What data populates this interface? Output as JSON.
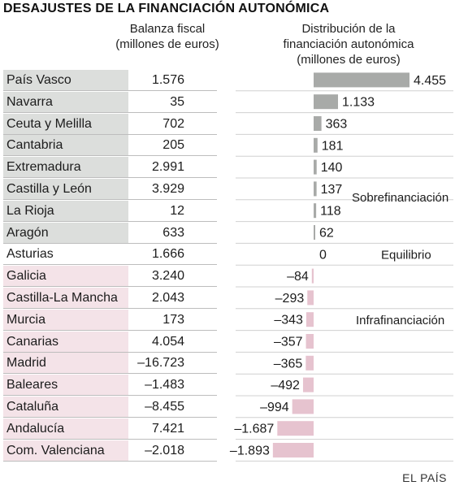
{
  "title": "DESAJUSTES DE LA FINANCIACIÓN AUTONÓMICA",
  "headers": {
    "balanza": [
      "Balanza fiscal",
      "(millones de euros)"
    ],
    "distribucion": [
      "Distribución de la",
      "financiación autonómica",
      "(millones de euros)"
    ]
  },
  "colors": {
    "surplus_bar": "#a8aaa8",
    "deficit_bar": "#e6c3cf",
    "surplus_bg": "#dcdedc",
    "deficit_bg": "#f4e3e8"
  },
  "group_labels": {
    "surplus": "Sobrefinanciación",
    "neutral": "Equilibrio",
    "deficit": "Infrafinanciación"
  },
  "source": "EL PAÍS",
  "rows": [
    {
      "name": "País Vasco",
      "fiscal": "1.576",
      "dist_label": "4.455",
      "group": "sur"
    },
    {
      "name": "Navarra",
      "fiscal": "35",
      "dist_label": "1.133",
      "group": "sur"
    },
    {
      "name": "Ceuta y Melilla",
      "fiscal": "702",
      "dist_label": "363",
      "group": "sur"
    },
    {
      "name": "Cantabria",
      "fiscal": "205",
      "dist_label": "181",
      "group": "sur"
    },
    {
      "name": "Extremadura",
      "fiscal": "2.991",
      "dist_label": "140",
      "group": "sur"
    },
    {
      "name": "Castilla y León",
      "fiscal": "3.929",
      "dist_label": "137",
      "group": "sur"
    },
    {
      "name": "La Rioja",
      "fiscal": "12",
      "dist_label": "118",
      "group": "sur"
    },
    {
      "name": "Aragón",
      "fiscal": "633",
      "dist_label": "62",
      "group": "sur"
    },
    {
      "name": "Asturias",
      "fiscal": "1.666",
      "dist_label": "0",
      "group": "neu"
    },
    {
      "name": "Galicia",
      "fiscal": "3.240",
      "dist_label": "–84",
      "group": "def"
    },
    {
      "name": "Castilla-La Mancha",
      "fiscal": "2.043",
      "dist_label": "–293",
      "group": "def"
    },
    {
      "name": "Murcia",
      "fiscal": "173",
      "dist_label": "–343",
      "group": "def"
    },
    {
      "name": "Canarias",
      "fiscal": "4.054",
      "dist_label": "–357",
      "group": "def"
    },
    {
      "name": "Madrid",
      "fiscal": "–16.723",
      "dist_label": "–365",
      "group": "def"
    },
    {
      "name": "Baleares",
      "fiscal": "–1.483",
      "dist_label": "–492",
      "group": "def"
    },
    {
      "name": "Cataluña",
      "fiscal": "–8.455",
      "dist_label": "–994",
      "group": "def"
    },
    {
      "name": "Andalucía",
      "fiscal": "7.421",
      "dist_label": "–1.687",
      "group": "def"
    },
    {
      "name": "Com. Valenciana",
      "fiscal": "–2.018",
      "dist_label": "–1.893",
      "group": "def"
    }
  ],
  "chart_data": {
    "type": "bar",
    "orientation": "horizontal",
    "categories": [
      "País Vasco",
      "Navarra",
      "Ceuta y Melilla",
      "Cantabria",
      "Extremadura",
      "Castilla y León",
      "La Rioja",
      "Aragón",
      "Asturias",
      "Galicia",
      "Castilla-La Mancha",
      "Murcia",
      "Canarias",
      "Madrid",
      "Baleares",
      "Cataluña",
      "Andalucía",
      "Com. Valenciana"
    ],
    "values": [
      4455,
      1133,
      363,
      181,
      140,
      137,
      118,
      62,
      0,
      -84,
      -293,
      -343,
      -357,
      -365,
      -492,
      -994,
      -1687,
      -1893
    ],
    "balanza_fiscal": [
      1576,
      35,
      702,
      205,
      2991,
      3929,
      12,
      633,
      1666,
      3240,
      2043,
      173,
      4054,
      -16723,
      -1483,
      -8455,
      7421,
      -2018
    ],
    "title": "DESAJUSTES DE LA FINANCIACIÓN AUTONÓMICA",
    "xlim": [
      -1893,
      4455
    ],
    "grid": false,
    "legend": "none"
  }
}
